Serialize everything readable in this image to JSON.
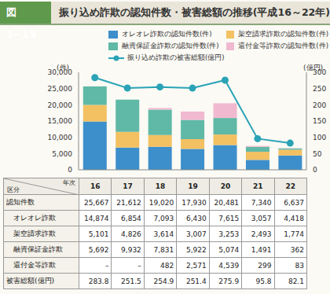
{
  "badge": "図1−19",
  "title": "振り込め詐欺の認知件数・被害総額の推移(平成16～22年)",
  "chart_data": {
    "type": "bar",
    "stacked": true,
    "legend": "top",
    "grid": false,
    "tick_labels": "y",
    "categories": [
      "16",
      "17",
      "18",
      "19",
      "20",
      "21",
      "22"
    ],
    "y_label": "(件)",
    "y2_label": "(億円)",
    "ylim": [
      0,
      30000
    ],
    "yticks": [
      0,
      {
        "value": 5000,
        "label": "5,000"
      },
      {
        "value": 10000,
        "label": "10,000"
      },
      {
        "value": 15000,
        "label": "15,000"
      },
      {
        "value": 20000,
        "label": "20,000"
      },
      {
        "value": 25000,
        "label": "25,000"
      },
      {
        "value": 30000,
        "label": "30,000"
      }
    ],
    "y2lim": [
      0,
      300
    ],
    "y2ticks": [
      0,
      50,
      100,
      150,
      200,
      250,
      300
    ],
    "series": [
      {
        "name": "オレオレ詐欺の認知件数(件)",
        "color": "#3d8fcb",
        "values": [
          14874,
          6854,
          7093,
          6430,
          7615,
          3057,
          4418
        ]
      },
      {
        "name": "架空請求詐欺の認知件数(件)",
        "color": "#f3c062",
        "values": [
          5101,
          4826,
          3614,
          3007,
          3253,
          2493,
          1774
        ]
      },
      {
        "name": "融資保証金詐欺の認知件数(件)",
        "color": "#5fb9a6",
        "values": [
          5692,
          9932,
          7831,
          5922,
          5074,
          1491,
          362
        ]
      },
      {
        "name": "還付金等詐欺の認知件数(件)",
        "color": "#f1b9d0",
        "values": [
          null,
          null,
          482,
          2571,
          4539,
          299,
          83
        ]
      },
      {
        "name": "振り込め詐欺の被害総額(億円)",
        "type": "line",
        "axis": "y2",
        "color": "#2aa3b6",
        "marker": "circle",
        "values": [
          283.8,
          251.5,
          254.9,
          251.4,
          275.9,
          95.8,
          82.1
        ]
      }
    ]
  },
  "table": {
    "corner_top": "年次",
    "corner_bottom": "区分",
    "rows": [
      {
        "label": "認知件数",
        "cells": [
          "25,667",
          "21,612",
          "19,020",
          "17,930",
          "20,481",
          "7,340",
          "6,637"
        ]
      },
      {
        "label": "オレオレ詐欺",
        "cells": [
          "14,874",
          "6,854",
          "7,093",
          "6,430",
          "7,615",
          "3,057",
          "4,418"
        ]
      },
      {
        "label": "架空請求詐欺",
        "cells": [
          "5,101",
          "4,826",
          "3,614",
          "3,007",
          "3,253",
          "2,493",
          "1,774"
        ]
      },
      {
        "label": "融資保証金詐欺",
        "cells": [
          "5,692",
          "9,932",
          "7,831",
          "5,922",
          "5,074",
          "1,491",
          "362"
        ]
      },
      {
        "label": "還付金等詐欺",
        "cells": [
          "–",
          "–",
          "482",
          "2,571",
          "4,539",
          "299",
          "83"
        ]
      },
      {
        "label": "被害総額(億円)",
        "cells": [
          "283.8",
          "251.5",
          "254.9",
          "251.4",
          "275.9",
          "95.8",
          "82.1"
        ]
      }
    ]
  }
}
